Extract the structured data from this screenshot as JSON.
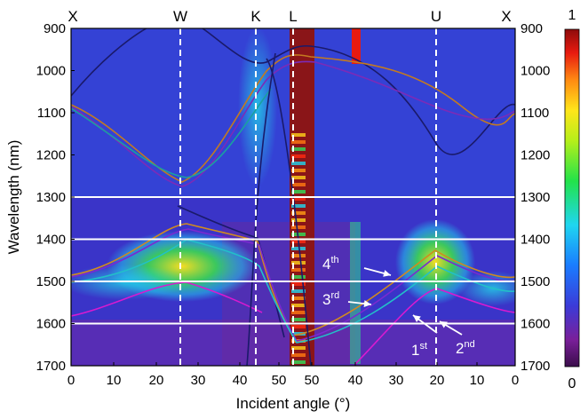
{
  "chart_data": {
    "type": "heatmap",
    "title": "",
    "xlabel": "Incident angle (°)",
    "ylabel": "Wavelength (nm)",
    "ylim": [
      1700,
      900
    ],
    "y_ticks": [
      "900",
      "1000",
      "1100",
      "1200",
      "1300",
      "1400",
      "1500",
      "1600",
      "1700"
    ],
    "x_ticks": [
      "0",
      "10",
      "20",
      "30",
      "40",
      "50",
      "50",
      "40",
      "30",
      "20",
      "10",
      "0"
    ],
    "top_labels": [
      "X",
      "W",
      "K",
      "L",
      "U",
      "X"
    ],
    "colorbar": {
      "min": "0",
      "max": "1",
      "ticks": [
        "0",
        "1"
      ]
    },
    "horizontal_lines_nm": [
      1300,
      1400,
      1500,
      1600
    ],
    "vertical_dashed_lines": [
      "W",
      "K",
      "L",
      "U"
    ],
    "mode_labels": [
      {
        "base": "4",
        "sup": "th"
      },
      {
        "base": "3",
        "sup": "rd"
      },
      {
        "base": "1",
        "sup": "st"
      },
      {
        "base": "2",
        "sup": "nd"
      }
    ],
    "grid": false
  }
}
